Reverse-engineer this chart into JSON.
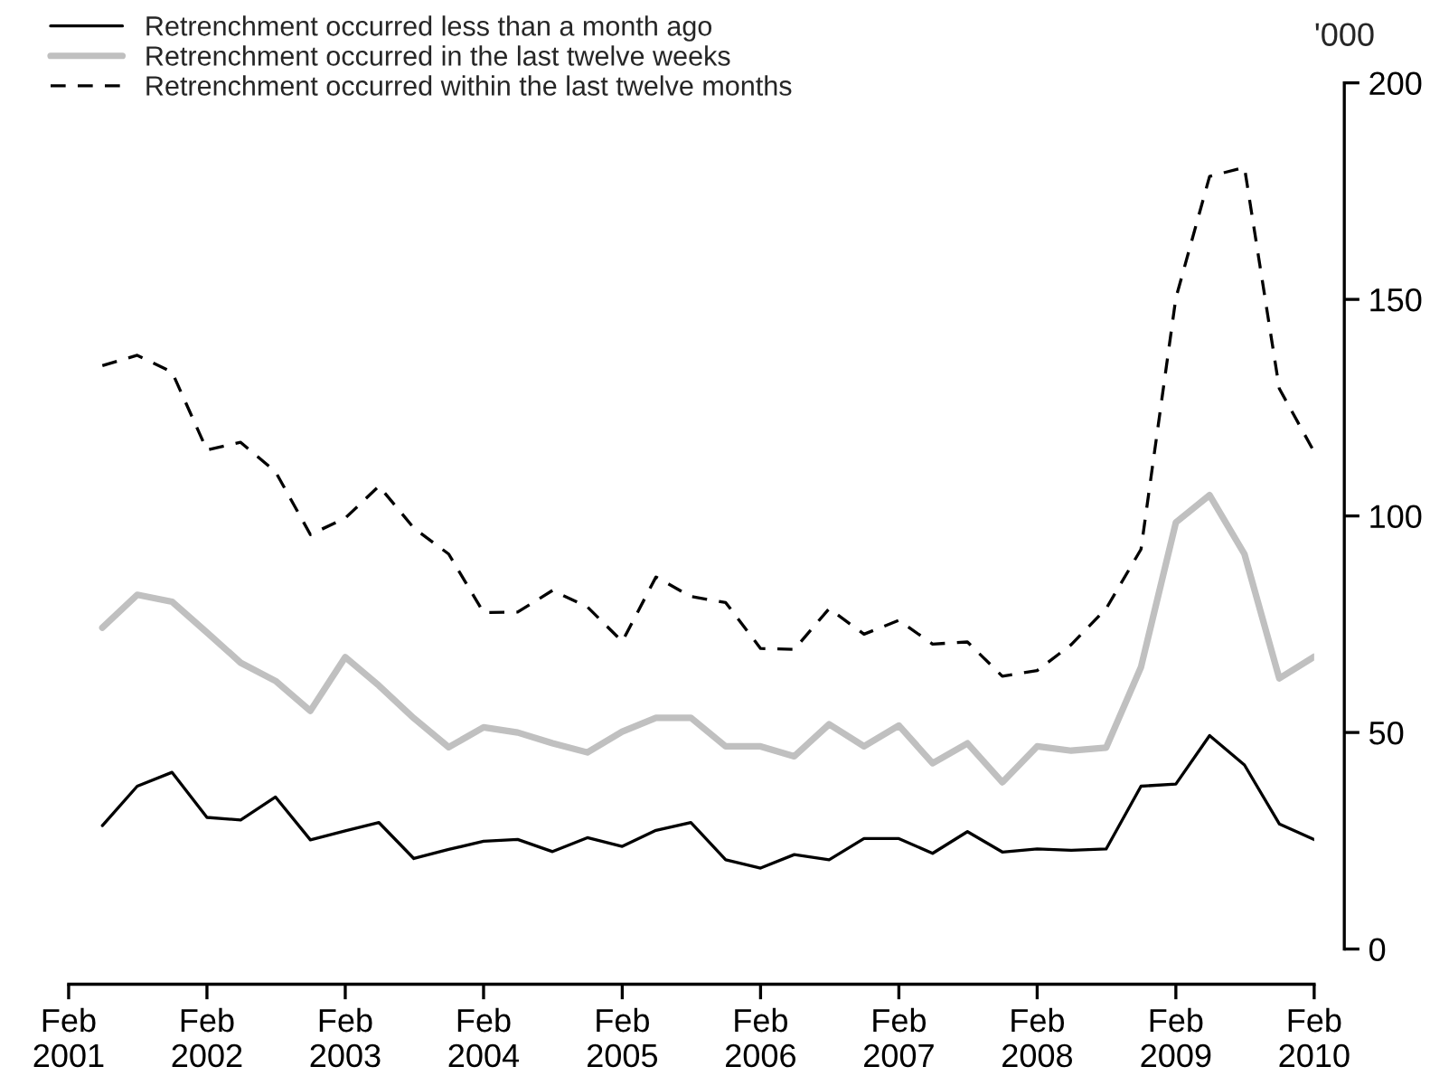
{
  "chart_data": {
    "type": "line",
    "x": [
      "2001-05",
      "2001-08",
      "2001-11",
      "2002-02",
      "2002-05",
      "2002-08",
      "2002-11",
      "2003-02",
      "2003-05",
      "2003-08",
      "2003-11",
      "2004-02",
      "2004-05",
      "2004-08",
      "2004-11",
      "2005-02",
      "2005-05",
      "2005-08",
      "2005-11",
      "2006-02",
      "2006-05",
      "2006-08",
      "2006-11",
      "2007-02",
      "2007-05",
      "2007-08",
      "2007-11",
      "2008-02",
      "2008-05",
      "2008-08",
      "2008-11",
      "2009-02",
      "2009-05",
      "2009-08",
      "2009-11",
      "2010-02"
    ],
    "series": [
      {
        "name": "Retrenchment occurred less than a month ago",
        "color": "#000000",
        "line_style": "solid",
        "values": [
          28.5,
          37.6,
          40.8,
          30.4,
          29.8,
          35.1,
          25.2,
          27.3,
          29.2,
          20.9,
          23.0,
          24.9,
          25.3,
          22.5,
          25.7,
          23.7,
          27.4,
          29.2,
          20.6,
          18.7,
          21.8,
          20.6,
          25.5,
          25.5,
          22.1,
          27.1,
          22.4,
          23.1,
          22.8,
          23.1,
          37.6,
          38.1,
          49.3,
          42.5,
          28.9,
          25.3
        ]
      },
      {
        "name": "Retrenchment occurred in the last twelve weeks",
        "color": "#c0c0c0",
        "line_style": "solid",
        "values": [
          74.2,
          81.8,
          80.2,
          73.1,
          66.1,
          61.9,
          55.0,
          67.4,
          60.8,
          53.3,
          46.6,
          51.2,
          50.0,
          47.5,
          45.4,
          50.2,
          53.4,
          53.4,
          46.8,
          46.8,
          44.5,
          51.9,
          46.8,
          51.6,
          42.9,
          47.5,
          38.5,
          46.8,
          45.8,
          46.5,
          65.1,
          98.5,
          104.8,
          91.2,
          62.5,
          67.5
        ]
      },
      {
        "name": "Retrenchment occurred within the last twelve months",
        "color": "#000000",
        "line_style": "dashed",
        "values": [
          134.7,
          137.1,
          133.2,
          115.2,
          117.0,
          110.2,
          95.7,
          99.5,
          106.9,
          97.2,
          91.2,
          77.7,
          77.8,
          82.8,
          79.0,
          71.0,
          85.9,
          81.4,
          80.0,
          69.4,
          69.2,
          78.6,
          72.7,
          75.9,
          70.4,
          70.9,
          63.0,
          64.3,
          70.3,
          78.6,
          92.3,
          150.3,
          178.4,
          180.5,
          129.4,
          114.8
        ]
      }
    ],
    "ylabel": "'000",
    "xlim": [
      "2001-02",
      "2010-02"
    ],
    "xticks": [
      {
        "value": "2001-02",
        "label": "Feb\n2001"
      },
      {
        "value": "2002-02",
        "label": "Feb\n2002"
      },
      {
        "value": "2003-02",
        "label": "Feb\n2003"
      },
      {
        "value": "2004-02",
        "label": "Feb\n2004"
      },
      {
        "value": "2005-02",
        "label": "Feb\n2005"
      },
      {
        "value": "2006-02",
        "label": "Feb\n2006"
      },
      {
        "value": "2007-02",
        "label": "Feb\n2007"
      },
      {
        "value": "2008-02",
        "label": "Feb\n2008"
      },
      {
        "value": "2009-02",
        "label": "Feb\n2009"
      },
      {
        "value": "2010-02",
        "label": "Feb\n2010"
      }
    ],
    "ylim": [
      0,
      200
    ],
    "yticks": [
      0,
      50,
      100,
      150,
      200
    ],
    "legend": "top left",
    "grid": false
  }
}
